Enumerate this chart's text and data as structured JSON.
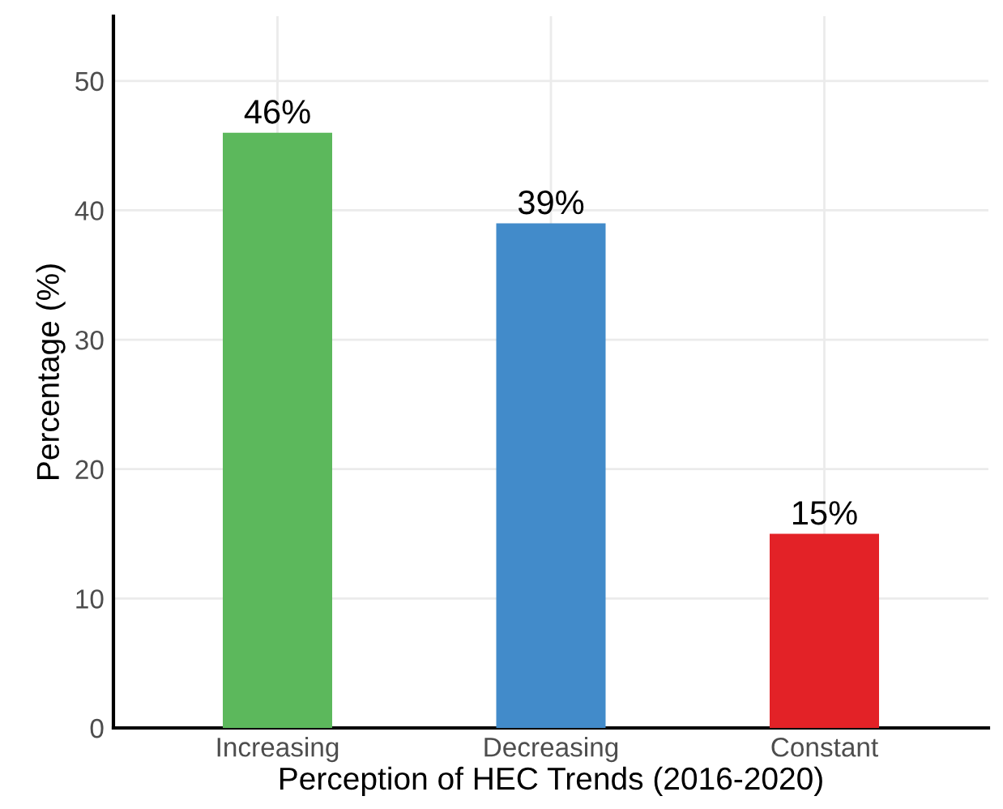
{
  "chart_data": {
    "type": "bar",
    "xlabel": "Perception of HEC Trends (2016-2020)",
    "ylabel": "Percentage (%)",
    "categories": [
      "Increasing",
      "Decreasing",
      "Constant"
    ],
    "values": [
      46,
      39,
      15
    ],
    "colors": [
      "#5cb85c",
      "#428bca",
      "#e32227"
    ],
    "value_labels": [
      "46%",
      "39%",
      "15%"
    ],
    "ylim": [
      0,
      55
    ],
    "yticks": [
      0,
      10,
      20,
      30,
      40,
      50
    ],
    "grid": true
  }
}
